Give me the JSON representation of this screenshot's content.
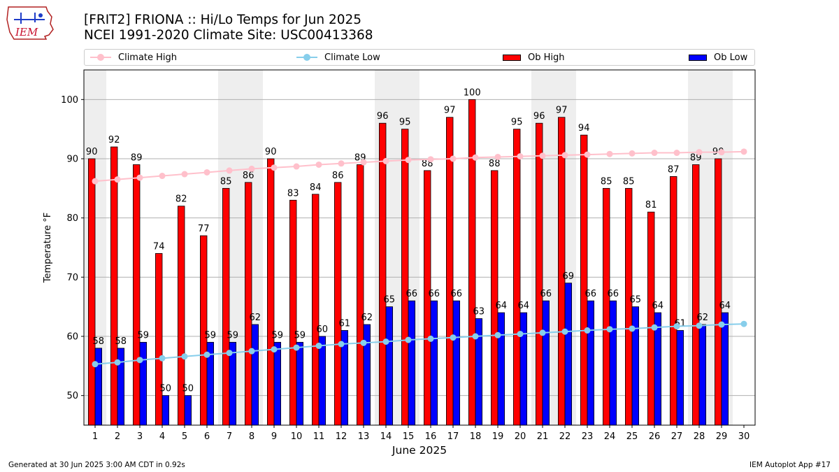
{
  "title": {
    "line1": "[FRIT2] FRIONA :: Hi/Lo Temps for Jun 2025",
    "line2": "NCEI 1991-2020 Climate Site: USC00413368"
  },
  "logo_text": "IEM",
  "legend": [
    {
      "label": "Climate High",
      "kind": "line",
      "color": "#ffc0cb"
    },
    {
      "label": "Climate Low",
      "kind": "line",
      "color": "#87ceeb"
    },
    {
      "label": "Ob High",
      "kind": "bar",
      "color": "#ff0000"
    },
    {
      "label": "Ob Low",
      "kind": "bar",
      "color": "#0000ff"
    }
  ],
  "footer": {
    "left": "Generated at 30 Jun 2025 3:00 AM CDT in 0.92s",
    "right": "IEM Autoplot App #17"
  },
  "chart_data": {
    "type": "bar",
    "title": "[FRIT2] FRIONA :: Hi/Lo Temps for Jun 2025",
    "xlabel": "June 2025",
    "ylabel": "Temperature °F",
    "ylim": [
      45,
      105
    ],
    "xlim": [
      0.5,
      30.5
    ],
    "yticks": [
      50,
      60,
      70,
      80,
      90,
      100
    ],
    "categories": [
      1,
      2,
      3,
      4,
      5,
      6,
      7,
      8,
      9,
      10,
      11,
      12,
      13,
      14,
      15,
      16,
      17,
      18,
      19,
      20,
      21,
      22,
      23,
      24,
      25,
      26,
      27,
      28,
      29,
      30
    ],
    "weekend_days": [
      1,
      7,
      8,
      14,
      15,
      21,
      22,
      28,
      29
    ],
    "grid": "horizontal",
    "series": [
      {
        "name": "Ob High",
        "type": "bar",
        "color": "#ff0000",
        "values": [
          90,
          92,
          89,
          74,
          82,
          77,
          85,
          86,
          90,
          83,
          84,
          86,
          89,
          96,
          95,
          88,
          97,
          100,
          88,
          95,
          96,
          97,
          94,
          85,
          85,
          81,
          87,
          89,
          90,
          null
        ]
      },
      {
        "name": "Ob Low",
        "type": "bar",
        "color": "#0000ff",
        "values": [
          58,
          58,
          59,
          50,
          50,
          59,
          59,
          62,
          59,
          59,
          60,
          61,
          62,
          65,
          66,
          66,
          66,
          63,
          64,
          64,
          66,
          69,
          66,
          66,
          65,
          64,
          61,
          62,
          64,
          null
        ]
      },
      {
        "name": "Climate High",
        "type": "line",
        "color": "#ffc0cb",
        "values": [
          86.2,
          86.5,
          86.8,
          87.1,
          87.4,
          87.7,
          88.0,
          88.3,
          88.5,
          88.7,
          89.0,
          89.2,
          89.4,
          89.6,
          89.8,
          89.9,
          90.0,
          90.2,
          90.3,
          90.4,
          90.5,
          90.6,
          90.7,
          90.8,
          90.9,
          91.0,
          91.0,
          91.1,
          91.1,
          91.2
        ]
      },
      {
        "name": "Climate Low",
        "type": "line",
        "color": "#87ceeb",
        "values": [
          55.3,
          55.6,
          56.0,
          56.3,
          56.6,
          56.9,
          57.2,
          57.5,
          57.8,
          58.1,
          58.4,
          58.7,
          58.9,
          59.1,
          59.4,
          59.6,
          59.8,
          60.0,
          60.2,
          60.4,
          60.6,
          60.8,
          61.0,
          61.2,
          61.3,
          61.5,
          61.7,
          61.8,
          62.0,
          62.1
        ]
      }
    ]
  }
}
